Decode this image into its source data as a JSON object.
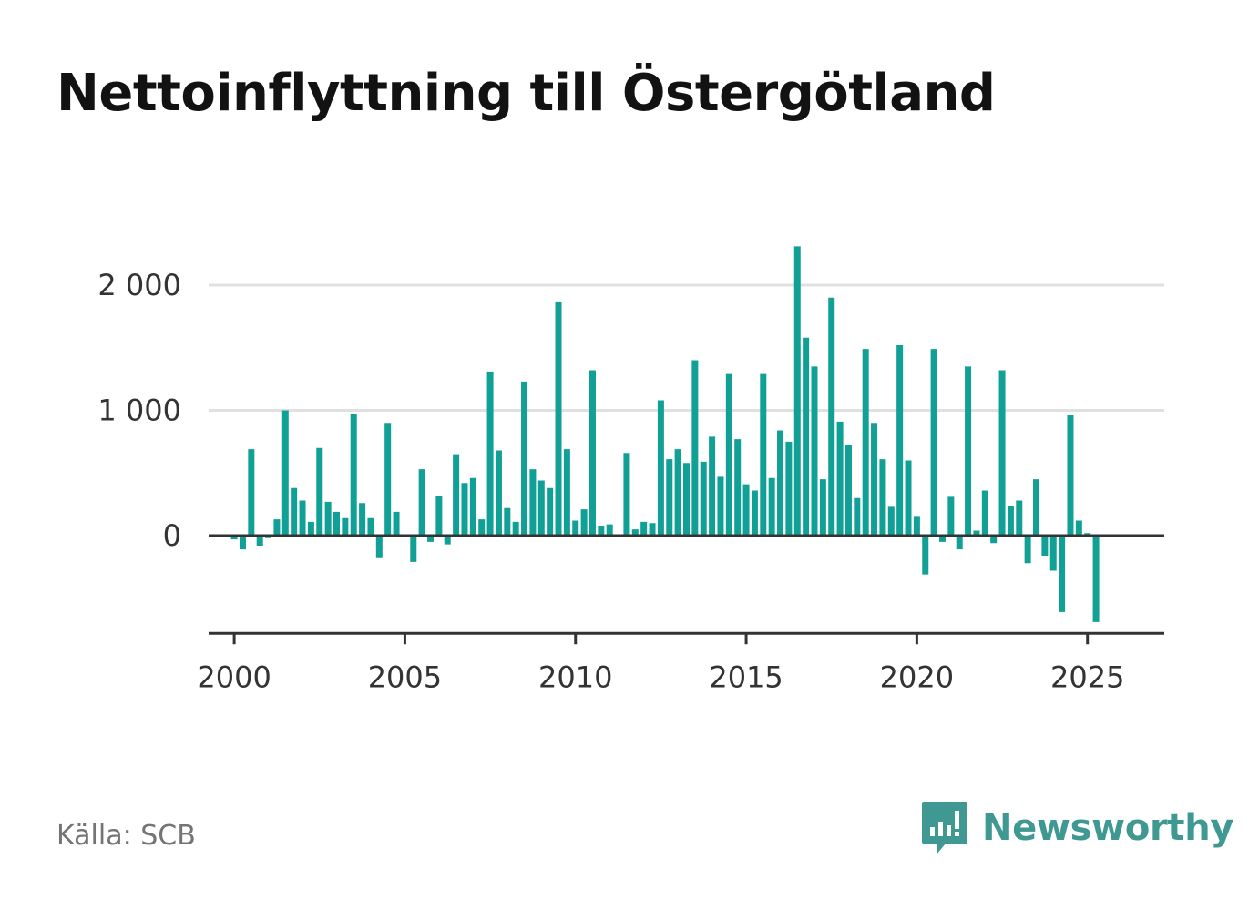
{
  "title": "Nettoinflyttning till Östergötland",
  "source": "Källa: SCB",
  "brand": {
    "name": "Newsworthy",
    "icon": "newsworthy-logo-icon"
  },
  "colors": {
    "bar": "#11a096",
    "grid": "#e0e0e0",
    "axis": "#333333",
    "brand": "#3f9992"
  },
  "chart_data": {
    "type": "bar",
    "title": "Nettoinflyttning till Östergötland",
    "xlabel": "",
    "ylabel": "",
    "grid": true,
    "xlim": [
      1999.25,
      2027.25
    ],
    "ylim": [
      -780,
      2300
    ],
    "yticks": [
      0,
      1000,
      2000
    ],
    "ytick_labels": [
      "0",
      "1 000",
      "2 000"
    ],
    "xticks": [
      2000,
      2005,
      2010,
      2015,
      2020,
      2025
    ],
    "xtick_labels": [
      "2000",
      "2005",
      "2010",
      "2015",
      "2020",
      "2025"
    ],
    "x": [
      "2000-Q1",
      "2000-Q2",
      "2000-Q3",
      "2000-Q4",
      "2001-Q1",
      "2001-Q2",
      "2001-Q3",
      "2001-Q4",
      "2002-Q1",
      "2002-Q2",
      "2002-Q3",
      "2002-Q4",
      "2003-Q1",
      "2003-Q2",
      "2003-Q3",
      "2003-Q4",
      "2004-Q1",
      "2004-Q2",
      "2004-Q3",
      "2004-Q4",
      "2005-Q1",
      "2005-Q2",
      "2005-Q3",
      "2005-Q4",
      "2006-Q1",
      "2006-Q2",
      "2006-Q3",
      "2006-Q4",
      "2007-Q1",
      "2007-Q2",
      "2007-Q3",
      "2007-Q4",
      "2008-Q1",
      "2008-Q2",
      "2008-Q3",
      "2008-Q4",
      "2009-Q1",
      "2009-Q2",
      "2009-Q3",
      "2009-Q4",
      "2010-Q1",
      "2010-Q2",
      "2010-Q3",
      "2010-Q4",
      "2011-Q1",
      "2011-Q2",
      "2011-Q3",
      "2011-Q4",
      "2012-Q1",
      "2012-Q2",
      "2012-Q3",
      "2012-Q4",
      "2013-Q1",
      "2013-Q2",
      "2013-Q3",
      "2013-Q4",
      "2014-Q1",
      "2014-Q2",
      "2014-Q3",
      "2014-Q4",
      "2015-Q1",
      "2015-Q2",
      "2015-Q3",
      "2015-Q4",
      "2016-Q1",
      "2016-Q2",
      "2016-Q3",
      "2016-Q4",
      "2017-Q1",
      "2017-Q2",
      "2017-Q3",
      "2017-Q4",
      "2018-Q1",
      "2018-Q2",
      "2018-Q3",
      "2018-Q4",
      "2019-Q1",
      "2019-Q2",
      "2019-Q3",
      "2019-Q4",
      "2020-Q1",
      "2020-Q2",
      "2020-Q3",
      "2020-Q4",
      "2021-Q1",
      "2021-Q2",
      "2021-Q3",
      "2021-Q4",
      "2022-Q1",
      "2022-Q2",
      "2022-Q3",
      "2022-Q4",
      "2023-Q1",
      "2023-Q2",
      "2023-Q3",
      "2023-Q4",
      "2024-Q1",
      "2024-Q2",
      "2024-Q3",
      "2024-Q4",
      "2025-Q1",
      "2025-Q2"
    ],
    "series": [
      {
        "values": [
          -30,
          -110,
          690,
          -80,
          -20,
          130,
          1000,
          380,
          280,
          110,
          700,
          270,
          190,
          140,
          970,
          260,
          140,
          -180,
          900,
          190,
          0,
          -210,
          530,
          -50,
          320,
          -70,
          650,
          420,
          460,
          130,
          1310,
          680,
          220,
          110,
          1230,
          530,
          440,
          380,
          1870,
          690,
          120,
          210,
          1320,
          80,
          90,
          0,
          660,
          50,
          110,
          100,
          1080,
          610,
          690,
          580,
          1400,
          590,
          790,
          470,
          1290,
          770,
          410,
          360,
          1290,
          460,
          840,
          750,
          2310,
          1580,
          1350,
          450,
          1900,
          910,
          720,
          300,
          1490,
          900,
          610,
          230,
          1520,
          600,
          150,
          -310,
          1490,
          -50,
          310,
          -110,
          1350,
          40,
          360,
          -60,
          1320,
          240,
          280,
          -220,
          450,
          -160,
          -280,
          -610,
          960,
          120,
          20,
          -690
        ]
      }
    ]
  }
}
